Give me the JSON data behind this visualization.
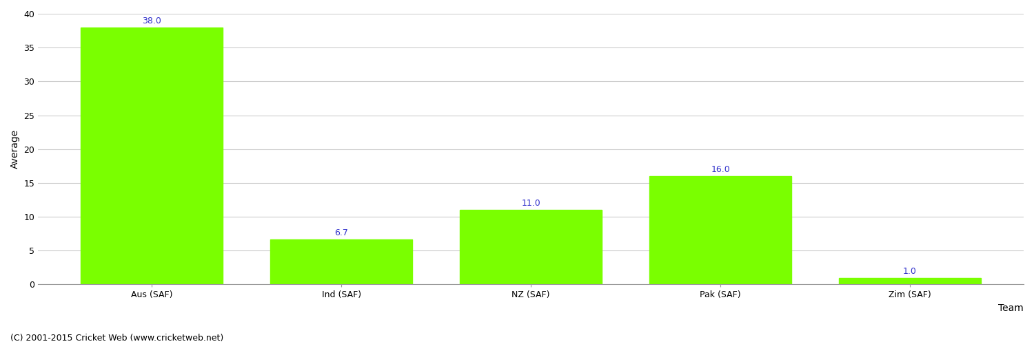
{
  "categories": [
    "Aus (SAF)",
    "Ind (SAF)",
    "NZ (SAF)",
    "Pak (SAF)",
    "Zim (SAF)"
  ],
  "values": [
    38.0,
    6.7,
    11.0,
    16.0,
    1.0
  ],
  "bar_color": "#7aff00",
  "bar_edge_color": "#7aff00",
  "label_color": "#3333cc",
  "xlabel": "Team",
  "ylabel": "Average",
  "ylim": [
    0,
    40
  ],
  "yticks": [
    0,
    5,
    10,
    15,
    20,
    25,
    30,
    35,
    40
  ],
  "grid_color": "#cccccc",
  "background_color": "#ffffff",
  "footer_text": "(C) 2001-2015 Cricket Web (www.cricketweb.net)",
  "label_fontsize": 9,
  "axis_label_fontsize": 10,
  "tick_fontsize": 9,
  "footer_fontsize": 9
}
